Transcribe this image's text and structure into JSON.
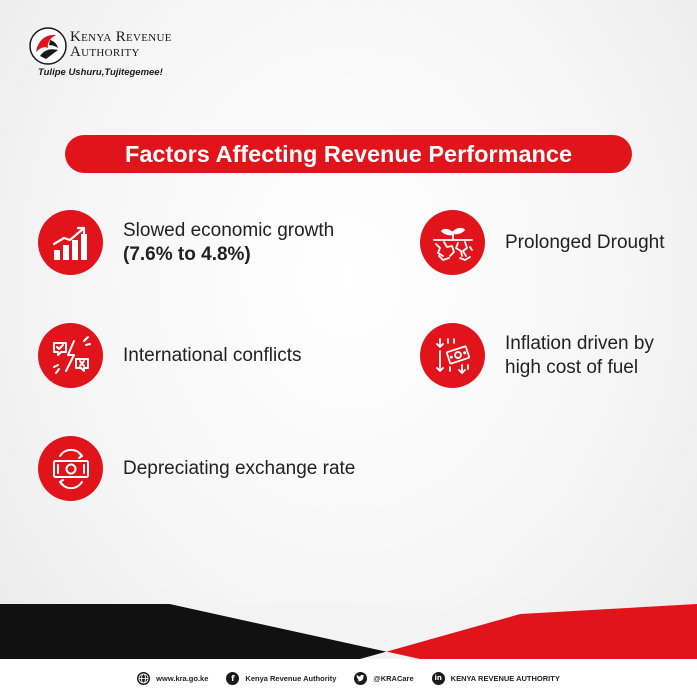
{
  "brand": {
    "name_line1": "Kenya Revenue",
    "name_line2": "Authority",
    "tagline": "Tulipe Ushuru,Tujitegemee!",
    "accent_color": "#e1141c"
  },
  "title": "Factors Affecting Revenue Performance",
  "factors": [
    {
      "icon": "growth-chart-icon",
      "line1": "Slowed economic growth",
      "line2": "(7.6% to 4.8%)"
    },
    {
      "icon": "conflict-icon",
      "line1": "International conflicts"
    },
    {
      "icon": "currency-exchange-icon",
      "line1": "Depreciating exchange rate"
    },
    {
      "icon": "drought-icon",
      "line1": "Prolonged Drought"
    },
    {
      "icon": "inflation-icon",
      "line1": "Inflation driven by",
      "line2": "high cost of fuel"
    }
  ],
  "footer": {
    "website": "www.kra.go.ke",
    "facebook": "Kenya Revenue Authority",
    "twitter": "@KRACare",
    "linkedin": "KENYA REVENUE AUTHORITY"
  }
}
